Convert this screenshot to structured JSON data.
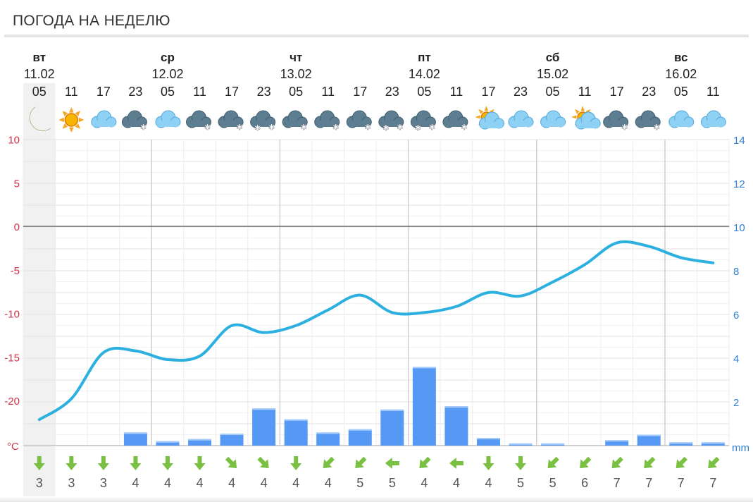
{
  "header": {
    "title": "ПОГОДА НА НЕДЕЛЮ"
  },
  "days": [
    {
      "name": "вт",
      "date": "11.02",
      "col": 0
    },
    {
      "name": "ср",
      "date": "12.02",
      "col": 4
    },
    {
      "name": "чт",
      "date": "13.02",
      "col": 8
    },
    {
      "name": "пт",
      "date": "14.02",
      "col": 12
    },
    {
      "name": "сб",
      "date": "15.02",
      "col": 16
    },
    {
      "name": "вс",
      "date": "16.02",
      "col": 20
    }
  ],
  "hours": [
    "05",
    "11",
    "17",
    "23",
    "05",
    "11",
    "17",
    "23",
    "05",
    "11",
    "17",
    "23",
    "05",
    "11",
    "17",
    "23",
    "05",
    "11",
    "17",
    "23",
    "05",
    "11"
  ],
  "icons": [
    "moon",
    "sun",
    "cloud",
    "cloud-snow",
    "cloud",
    "cloud-snow",
    "cloud-snow",
    "cloud-heavy-snow",
    "cloud-snow",
    "cloud-snow",
    "cloud-snow",
    "cloud-heavy-snow",
    "cloud-heavy-snow",
    "cloud-snow",
    "sun-cloud",
    "cloud",
    "cloud",
    "sun-cloud",
    "cloud-snow",
    "cloud-snow",
    "cloud",
    "cloud"
  ],
  "wind": {
    "directions": [
      "down",
      "down",
      "down",
      "down",
      "down",
      "down",
      "down-right",
      "down-right",
      "down",
      "down-left",
      "down-left",
      "left",
      "down-left",
      "left",
      "down",
      "down",
      "down-left",
      "down-left",
      "down-left",
      "down-left",
      "down-left",
      "down-left"
    ],
    "speeds": [
      "3",
      "3",
      "3",
      "4",
      "4",
      "4",
      "4",
      "4",
      "4",
      "4",
      "5",
      "5",
      "4",
      "4",
      "4",
      "5",
      "5",
      "6",
      "7",
      "7",
      "7",
      "7"
    ]
  },
  "chart_data": {
    "type": "line+bar",
    "left_axis": {
      "unit": "°C",
      "ticks": [
        "10",
        "5",
        "0",
        "-5",
        "-10",
        "-15",
        "-20"
      ],
      "range": [
        -25,
        10
      ],
      "color": "#d0354a"
    },
    "right_axis": {
      "unit": "mm",
      "ticks": [
        "14",
        "12",
        "10",
        "8",
        "6",
        "4",
        "2"
      ],
      "range": [
        0,
        14
      ],
      "color": "#2f7fd0"
    },
    "temperature": [
      -22.2,
      -19.8,
      -14.5,
      -14.3,
      -15.3,
      -14.9,
      -11.4,
      -12.2,
      -11.4,
      -9.6,
      -7.9,
      -9.9,
      -9.9,
      -9.2,
      -7.6,
      -8.0,
      -6.4,
      -4.4,
      -1.9,
      -2.3,
      -3.6,
      -4.2
    ],
    "precipitation": [
      0,
      0,
      0,
      0.6,
      0.2,
      0.3,
      0.55,
      1.7,
      1.2,
      0.6,
      0.75,
      1.65,
      3.6,
      1.8,
      0.35,
      0.1,
      0.1,
      0,
      0.25,
      0.5,
      0.15,
      0.15
    ],
    "line_color": "#2cb0e0",
    "bar_color": "#5599f5",
    "grid": true,
    "highlight_col": 0
  }
}
